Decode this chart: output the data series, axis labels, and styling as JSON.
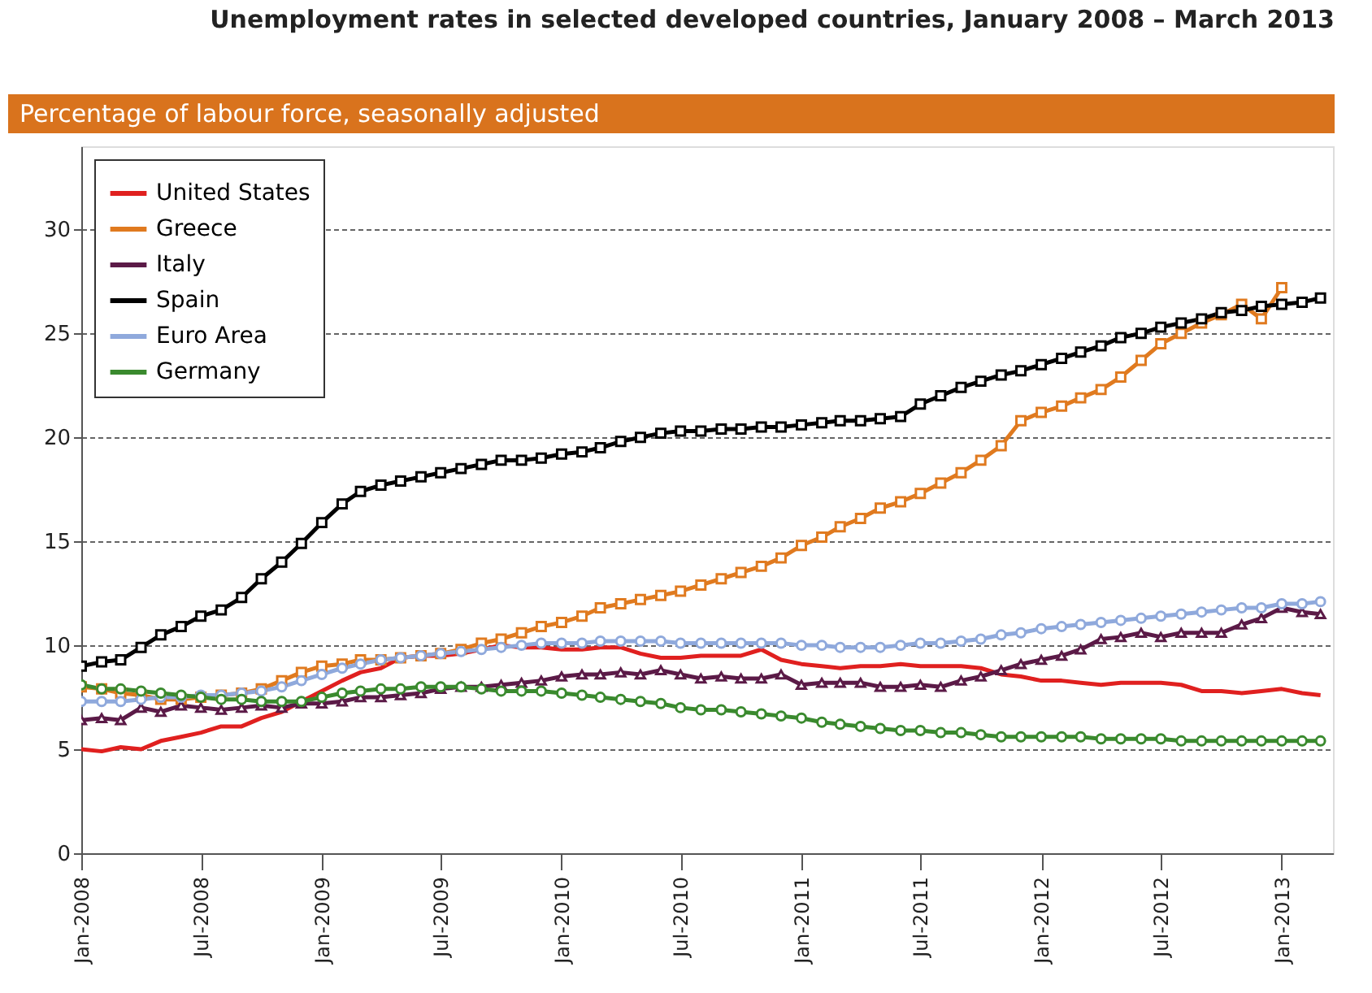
{
  "chart_data": {
    "type": "line",
    "title": "Unemployment rates in selected developed countries, January 2008 – March 2013",
    "subtitle": "Percentage of labour force, seasonally adjusted",
    "x": [
      "2008-01",
      "2008-02",
      "2008-03",
      "2008-04",
      "2008-05",
      "2008-06",
      "2008-07",
      "2008-08",
      "2008-09",
      "2008-10",
      "2008-11",
      "2008-12",
      "2009-01",
      "2009-02",
      "2009-03",
      "2009-04",
      "2009-05",
      "2009-06",
      "2009-07",
      "2009-08",
      "2009-09",
      "2009-10",
      "2009-11",
      "2009-12",
      "2010-01",
      "2010-02",
      "2010-03",
      "2010-04",
      "2010-05",
      "2010-06",
      "2010-07",
      "2010-08",
      "2010-09",
      "2010-10",
      "2010-11",
      "2010-12",
      "2011-01",
      "2011-02",
      "2011-03",
      "2011-04",
      "2011-05",
      "2011-06",
      "2011-07",
      "2011-08",
      "2011-09",
      "2011-10",
      "2011-11",
      "2011-12",
      "2012-01",
      "2012-02",
      "2012-03",
      "2012-04",
      "2012-05",
      "2012-06",
      "2012-07",
      "2012-08",
      "2012-09",
      "2012-10",
      "2012-11",
      "2012-12",
      "2013-01",
      "2013-02",
      "2013-03"
    ],
    "series": [
      {
        "name": "United States",
        "color": "#e0201f",
        "marker": "none",
        "values": [
          5.0,
          4.9,
          5.1,
          5.0,
          5.4,
          5.6,
          5.8,
          6.1,
          6.1,
          6.5,
          6.8,
          7.3,
          7.8,
          8.3,
          8.7,
          8.9,
          9.4,
          9.5,
          9.5,
          9.6,
          9.8,
          10.0,
          9.9,
          9.9,
          9.8,
          9.8,
          9.9,
          9.9,
          9.6,
          9.4,
          9.4,
          9.5,
          9.5,
          9.5,
          9.8,
          9.3,
          9.1,
          9.0,
          8.9,
          9.0,
          9.0,
          9.1,
          9.0,
          9.0,
          9.0,
          8.9,
          8.6,
          8.5,
          8.3,
          8.3,
          8.2,
          8.1,
          8.2,
          8.2,
          8.2,
          8.1,
          7.8,
          7.8,
          7.7,
          7.8,
          7.9,
          7.7,
          7.6
        ]
      },
      {
        "name": "Greece",
        "color": "#e07a1f",
        "marker": "square",
        "values": [
          8.0,
          7.9,
          7.7,
          7.6,
          7.4,
          7.4,
          7.5,
          7.6,
          7.7,
          7.9,
          8.3,
          8.7,
          9.0,
          9.1,
          9.3,
          9.3,
          9.4,
          9.5,
          9.6,
          9.8,
          10.1,
          10.3,
          10.6,
          10.9,
          11.1,
          11.4,
          11.8,
          12.0,
          12.2,
          12.4,
          12.6,
          12.9,
          13.2,
          13.5,
          13.8,
          14.2,
          14.8,
          15.2,
          15.7,
          16.1,
          16.6,
          16.9,
          17.3,
          17.8,
          18.3,
          18.9,
          19.6,
          20.8,
          21.2,
          21.5,
          21.9,
          22.3,
          22.9,
          23.7,
          24.5,
          25.0,
          25.5,
          25.9,
          26.4,
          25.7,
          27.2,
          null,
          null
        ]
      },
      {
        "name": "Italy",
        "color": "#5b1a47",
        "marker": "triangle",
        "values": [
          6.4,
          6.5,
          6.4,
          7.0,
          6.8,
          7.1,
          7.0,
          6.9,
          7.0,
          7.1,
          7.0,
          7.2,
          7.2,
          7.3,
          7.5,
          7.5,
          7.6,
          7.7,
          7.9,
          8.0,
          8.0,
          8.1,
          8.2,
          8.3,
          8.5,
          8.6,
          8.6,
          8.7,
          8.6,
          8.8,
          8.6,
          8.4,
          8.5,
          8.4,
          8.4,
          8.6,
          8.1,
          8.2,
          8.2,
          8.2,
          8.0,
          8.0,
          8.1,
          8.0,
          8.3,
          8.5,
          8.8,
          9.1,
          9.3,
          9.5,
          9.8,
          10.3,
          10.4,
          10.6,
          10.4,
          10.6,
          10.6,
          10.6,
          11.0,
          11.3,
          11.8,
          11.6,
          11.5
        ]
      },
      {
        "name": "Spain",
        "color": "#000000",
        "marker": "square",
        "values": [
          9.0,
          9.2,
          9.3,
          9.9,
          10.5,
          10.9,
          11.4,
          11.7,
          12.3,
          13.2,
          14.0,
          14.9,
          15.9,
          16.8,
          17.4,
          17.7,
          17.9,
          18.1,
          18.3,
          18.5,
          18.7,
          18.9,
          18.9,
          19.0,
          19.2,
          19.3,
          19.5,
          19.8,
          20.0,
          20.2,
          20.3,
          20.3,
          20.4,
          20.4,
          20.5,
          20.5,
          20.6,
          20.7,
          20.8,
          20.8,
          20.9,
          21.0,
          21.6,
          22.0,
          22.4,
          22.7,
          23.0,
          23.2,
          23.5,
          23.8,
          24.1,
          24.4,
          24.8,
          25.0,
          25.3,
          25.5,
          25.7,
          26.0,
          26.1,
          26.3,
          26.4,
          26.5,
          26.7
        ]
      },
      {
        "name": "Euro Area",
        "color": "#8fa9dc",
        "marker": "circle",
        "values": [
          7.3,
          7.3,
          7.3,
          7.4,
          7.5,
          7.5,
          7.6,
          7.6,
          7.7,
          7.8,
          8.0,
          8.3,
          8.6,
          8.9,
          9.1,
          9.3,
          9.4,
          9.5,
          9.6,
          9.7,
          9.8,
          9.9,
          10.0,
          10.1,
          10.1,
          10.1,
          10.2,
          10.2,
          10.2,
          10.2,
          10.1,
          10.1,
          10.1,
          10.1,
          10.1,
          10.1,
          10.0,
          10.0,
          9.9,
          9.9,
          9.9,
          10.0,
          10.1,
          10.1,
          10.2,
          10.3,
          10.5,
          10.6,
          10.8,
          10.9,
          11.0,
          11.1,
          11.2,
          11.3,
          11.4,
          11.5,
          11.6,
          11.7,
          11.8,
          11.8,
          12.0,
          12.0,
          12.1
        ]
      },
      {
        "name": "Germany",
        "color": "#3a8a2e",
        "marker": "circle",
        "values": [
          8.1,
          7.9,
          7.9,
          7.8,
          7.7,
          7.6,
          7.5,
          7.4,
          7.4,
          7.3,
          7.3,
          7.3,
          7.5,
          7.7,
          7.8,
          7.9,
          7.9,
          8.0,
          8.0,
          8.0,
          7.9,
          7.8,
          7.8,
          7.8,
          7.7,
          7.6,
          7.5,
          7.4,
          7.3,
          7.2,
          7.0,
          6.9,
          6.9,
          6.8,
          6.7,
          6.6,
          6.5,
          6.3,
          6.2,
          6.1,
          6.0,
          5.9,
          5.9,
          5.8,
          5.8,
          5.7,
          5.6,
          5.6,
          5.6,
          5.6,
          5.6,
          5.5,
          5.5,
          5.5,
          5.5,
          5.4,
          5.4,
          5.4,
          5.4,
          5.4,
          5.4,
          5.4,
          5.4
        ]
      }
    ],
    "xlim": [
      "2008-01-01",
      "2013-03-20"
    ],
    "xticks": [
      {
        "value": "2008-01",
        "label": "Jan-2008"
      },
      {
        "value": "2008-07",
        "label": "Jul-2008"
      },
      {
        "value": "2009-01",
        "label": "Jan-2009"
      },
      {
        "value": "2009-07",
        "label": "Jul-2009"
      },
      {
        "value": "2010-01",
        "label": "Jan-2010"
      },
      {
        "value": "2010-07",
        "label": "Jul-2010"
      },
      {
        "value": "2011-01",
        "label": "Jan-2011"
      },
      {
        "value": "2011-07",
        "label": "Jul-2011"
      },
      {
        "value": "2012-01",
        "label": "Jan-2012"
      },
      {
        "value": "2012-07",
        "label": "Jul-2012"
      },
      {
        "value": "2013-01",
        "label": "Jan-2013"
      }
    ],
    "ylim": [
      0,
      34
    ],
    "yticks": [
      0,
      5,
      10,
      15,
      20,
      25,
      30
    ],
    "grid": "y",
    "legend": "top left",
    "line_style": "solid"
  }
}
